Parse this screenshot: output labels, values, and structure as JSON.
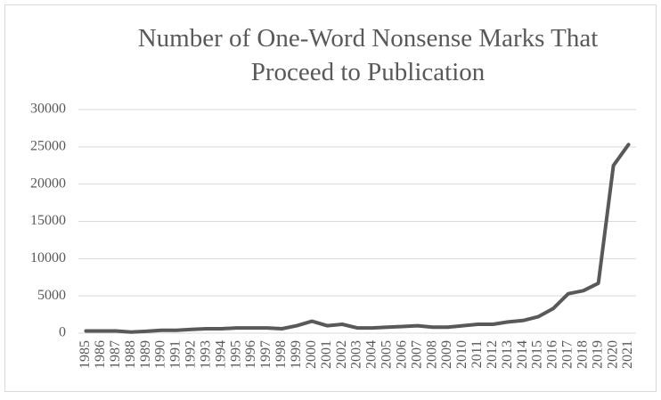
{
  "chart_data": {
    "type": "line",
    "title": "Number of One-Word Nonsense Marks That Proceed to Publication",
    "categories": [
      "1985",
      "1986",
      "1987",
      "1988",
      "1989",
      "1990",
      "1991",
      "1992",
      "1993",
      "1994",
      "1995",
      "1996",
      "1997",
      "1998",
      "1999",
      "2000",
      "2001",
      "2002",
      "2003",
      "2004",
      "2005",
      "2006",
      "2007",
      "2008",
      "2009",
      "2010",
      "2011",
      "2012",
      "2013",
      "2014",
      "2015",
      "2016",
      "2017",
      "2018",
      "2019",
      "2020",
      "2021"
    ],
    "values": [
      300,
      300,
      300,
      150,
      250,
      400,
      400,
      500,
      600,
      600,
      700,
      700,
      700,
      600,
      1000,
      1600,
      1000,
      1200,
      700,
      700,
      800,
      900,
      1000,
      800,
      800,
      1000,
      1200,
      1200,
      1500,
      1700,
      2200,
      3300,
      5300,
      5700,
      6700,
      22500,
      25300
    ],
    "color": "#595959",
    "ylim": [
      0,
      30000
    ],
    "yticks": [
      0,
      5000,
      10000,
      15000,
      20000,
      25000,
      30000
    ],
    "grid": true
  }
}
